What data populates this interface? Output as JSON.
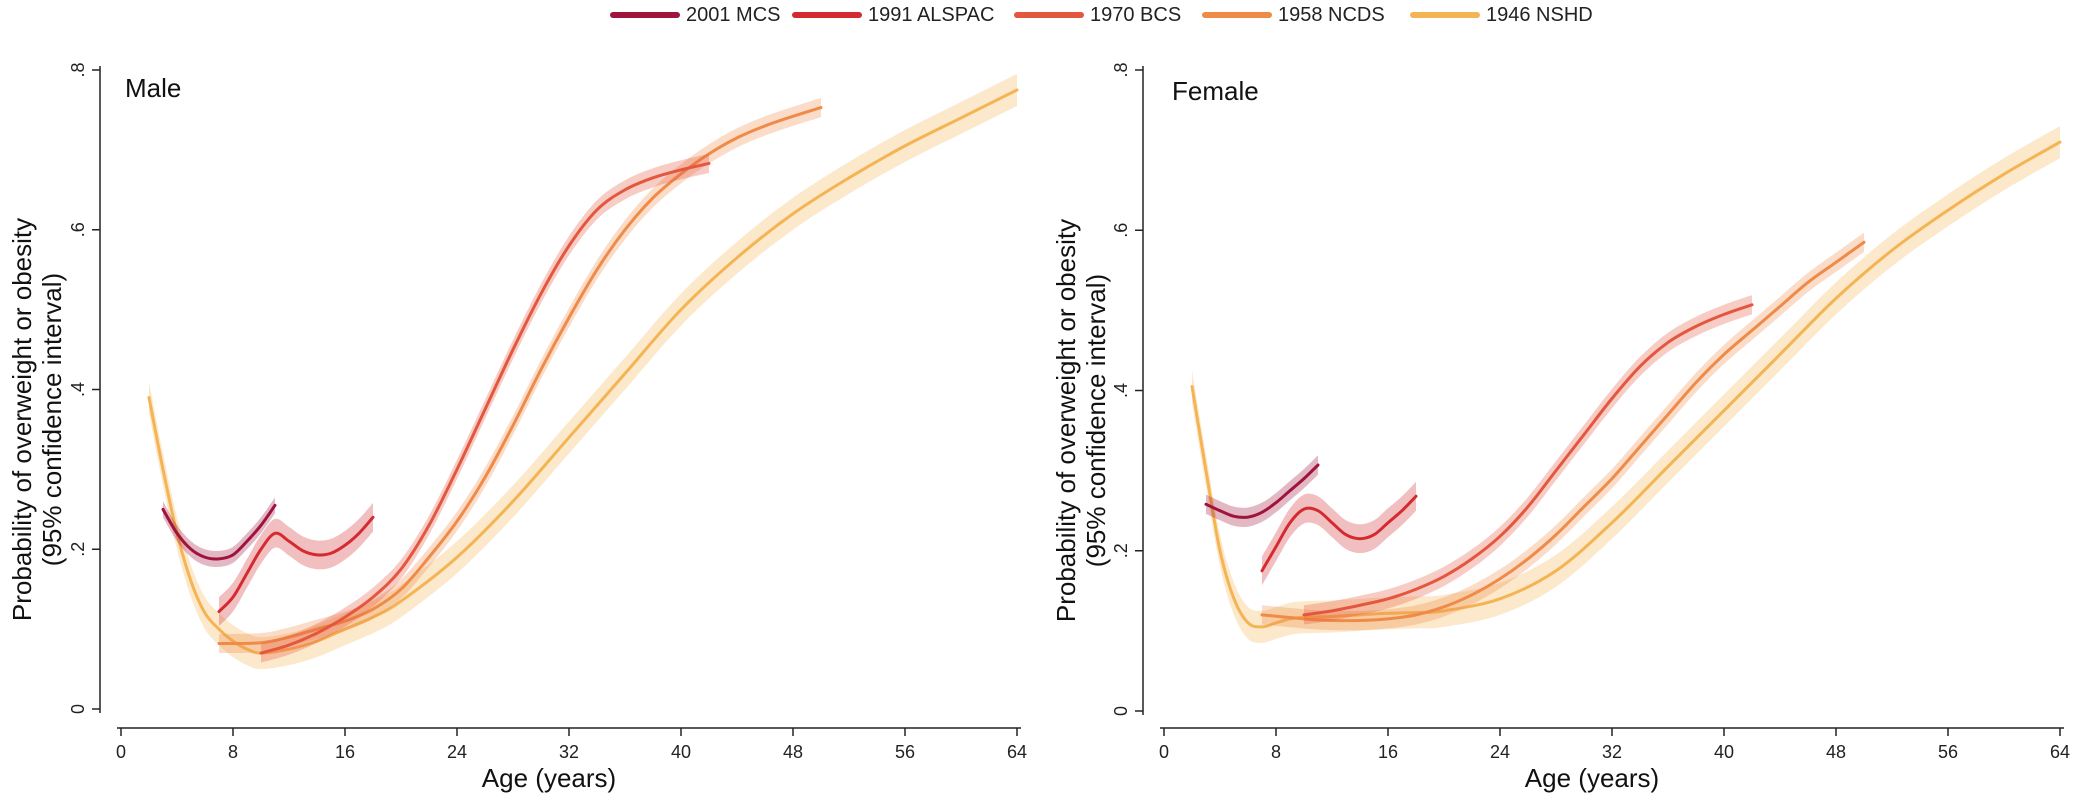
{
  "colors": {
    "mcs2001": "#a0133c",
    "alspac1991": "#d42a30",
    "bcs1970": "#e4573f",
    "ncds1958": "#ef8b48",
    "nshd1946": "#f5b454"
  },
  "legend": [
    {
      "label": "2001 MCS",
      "color_key": "mcs2001"
    },
    {
      "label": "1991 ALSPAC",
      "color_key": "alspac1991"
    },
    {
      "label": "1970 BCS",
      "color_key": "bcs1970"
    },
    {
      "label": "1958 NCDS",
      "color_key": "ncds1958"
    },
    {
      "label": "1946 NSHD",
      "color_key": "nshd1946"
    }
  ],
  "chart_data": [
    {
      "type": "line",
      "title": "Male",
      "xlabel": "Age (years)",
      "ylabel": [
        "Probability of overweight or obesity",
        "(95% confidence interval)"
      ],
      "xlim": [
        0,
        64
      ],
      "ylim": [
        0,
        0.8
      ],
      "xticks": [
        0,
        8,
        16,
        24,
        32,
        40,
        48,
        56,
        64
      ],
      "xtick_labels": [
        "0",
        "8",
        "16",
        "24",
        "32",
        "40",
        "48",
        "56",
        "64"
      ],
      "yticks": [
        0,
        0.2,
        0.4,
        0.6,
        0.8
      ],
      "ytick_labels": [
        "0",
        ".2",
        ".4",
        ".6",
        ".8"
      ],
      "grid": false,
      "confidence_bands": true,
      "series": [
        {
          "name": "1946 NSHD",
          "color_key": "nshd1946",
          "ci": 0.02,
          "x": [
            2,
            3,
            4,
            5,
            6,
            7,
            8,
            9,
            10,
            12,
            14,
            16,
            18,
            20,
            24,
            28,
            32,
            36,
            40,
            44,
            48,
            52,
            56,
            60,
            64
          ],
          "y": [
            0.39,
            0.3,
            0.22,
            0.16,
            0.12,
            0.1,
            0.085,
            0.075,
            0.07,
            0.075,
            0.085,
            0.1,
            0.115,
            0.135,
            0.19,
            0.26,
            0.34,
            0.42,
            0.5,
            0.565,
            0.62,
            0.665,
            0.705,
            0.74,
            0.775
          ]
        },
        {
          "name": "1958 NCDS",
          "color_key": "ncds1958",
          "ci": 0.012,
          "x": [
            7,
            10,
            12,
            14,
            16,
            18,
            20,
            22,
            24,
            26,
            28,
            30,
            32,
            34,
            36,
            38,
            40,
            42,
            44,
            46,
            48,
            50
          ],
          "y": [
            0.082,
            0.083,
            0.09,
            0.1,
            0.11,
            0.125,
            0.15,
            0.19,
            0.235,
            0.29,
            0.355,
            0.425,
            0.49,
            0.55,
            0.6,
            0.64,
            0.67,
            0.695,
            0.715,
            0.73,
            0.742,
            0.753
          ]
        },
        {
          "name": "1970 BCS",
          "color_key": "bcs1970",
          "ci": 0.012,
          "x": [
            10,
            12,
            14,
            16,
            18,
            20,
            22,
            24,
            26,
            28,
            30,
            32,
            34,
            36,
            38,
            40,
            42
          ],
          "y": [
            0.07,
            0.08,
            0.095,
            0.115,
            0.14,
            0.175,
            0.23,
            0.3,
            0.375,
            0.45,
            0.52,
            0.58,
            0.625,
            0.65,
            0.665,
            0.675,
            0.683
          ]
        },
        {
          "name": "1991 ALSPAC",
          "color_key": "alspac1991",
          "ci": 0.018,
          "x": [
            7,
            8,
            9,
            10,
            11,
            12,
            13,
            14,
            15,
            16,
            17,
            18
          ],
          "y": [
            0.122,
            0.14,
            0.17,
            0.2,
            0.22,
            0.21,
            0.198,
            0.193,
            0.195,
            0.205,
            0.22,
            0.24
          ]
        },
        {
          "name": "2001 MCS",
          "color_key": "mcs2001",
          "ci": 0.01,
          "x": [
            3,
            4,
            5,
            6,
            7,
            8,
            9,
            10,
            11
          ],
          "y": [
            0.25,
            0.22,
            0.2,
            0.19,
            0.188,
            0.193,
            0.21,
            0.23,
            0.255
          ]
        }
      ]
    },
    {
      "type": "line",
      "title": "Female",
      "xlabel": "Age (years)",
      "ylabel": [
        "Probability of overweight or obesity",
        "(95% confidence interval)"
      ],
      "xlim": [
        0,
        64
      ],
      "ylim": [
        0,
        0.8
      ],
      "xticks": [
        0,
        8,
        16,
        24,
        32,
        40,
        48,
        56,
        64
      ],
      "xtick_labels": [
        "0",
        "8",
        "16",
        "24",
        "32",
        "40",
        "48",
        "56",
        "64"
      ],
      "yticks": [
        0,
        0.2,
        0.4,
        0.6,
        0.8
      ],
      "ytick_labels": [
        "0",
        ".2",
        ".4",
        ".6",
        ".8"
      ],
      "grid": false,
      "confidence_bands": true,
      "series": [
        {
          "name": "1946 NSHD",
          "color_key": "nshd1946",
          "ci": 0.02,
          "x": [
            2,
            3,
            4,
            5,
            6,
            7,
            8,
            9,
            10,
            12,
            14,
            16,
            18,
            20,
            24,
            28,
            32,
            36,
            40,
            44,
            48,
            52,
            56,
            60,
            64
          ],
          "y": [
            0.405,
            0.3,
            0.2,
            0.14,
            0.11,
            0.105,
            0.11,
            0.115,
            0.117,
            0.118,
            0.12,
            0.122,
            0.123,
            0.125,
            0.14,
            0.175,
            0.235,
            0.305,
            0.375,
            0.445,
            0.515,
            0.575,
            0.625,
            0.67,
            0.71
          ]
        },
        {
          "name": "1958 NCDS",
          "color_key": "ncds1958",
          "ci": 0.012,
          "x": [
            7,
            10,
            12,
            14,
            16,
            18,
            20,
            22,
            24,
            26,
            28,
            30,
            32,
            34,
            36,
            38,
            40,
            42,
            44,
            46,
            48,
            50
          ],
          "y": [
            0.12,
            0.115,
            0.113,
            0.113,
            0.115,
            0.12,
            0.13,
            0.145,
            0.165,
            0.19,
            0.22,
            0.255,
            0.29,
            0.33,
            0.37,
            0.41,
            0.445,
            0.475,
            0.505,
            0.535,
            0.56,
            0.585
          ]
        },
        {
          "name": "1970 BCS",
          "color_key": "bcs1970",
          "ci": 0.012,
          "x": [
            10,
            12,
            14,
            16,
            18,
            20,
            22,
            24,
            26,
            28,
            30,
            32,
            34,
            36,
            38,
            40,
            42
          ],
          "y": [
            0.12,
            0.125,
            0.132,
            0.14,
            0.152,
            0.168,
            0.19,
            0.218,
            0.255,
            0.3,
            0.345,
            0.39,
            0.43,
            0.46,
            0.48,
            0.495,
            0.507
          ]
        },
        {
          "name": "1991 ALSPAC",
          "color_key": "alspac1991",
          "ci": 0.018,
          "x": [
            7,
            8,
            9,
            10,
            11,
            12,
            13,
            14,
            15,
            16,
            17,
            18
          ],
          "y": [
            0.175,
            0.205,
            0.235,
            0.252,
            0.25,
            0.235,
            0.22,
            0.215,
            0.22,
            0.235,
            0.25,
            0.268
          ]
        },
        {
          "name": "2001 MCS",
          "color_key": "mcs2001",
          "ci": 0.012,
          "x": [
            3,
            4,
            5,
            6,
            7,
            8,
            9,
            10,
            11
          ],
          "y": [
            0.258,
            0.25,
            0.243,
            0.242,
            0.248,
            0.26,
            0.275,
            0.29,
            0.307
          ]
        }
      ]
    }
  ]
}
